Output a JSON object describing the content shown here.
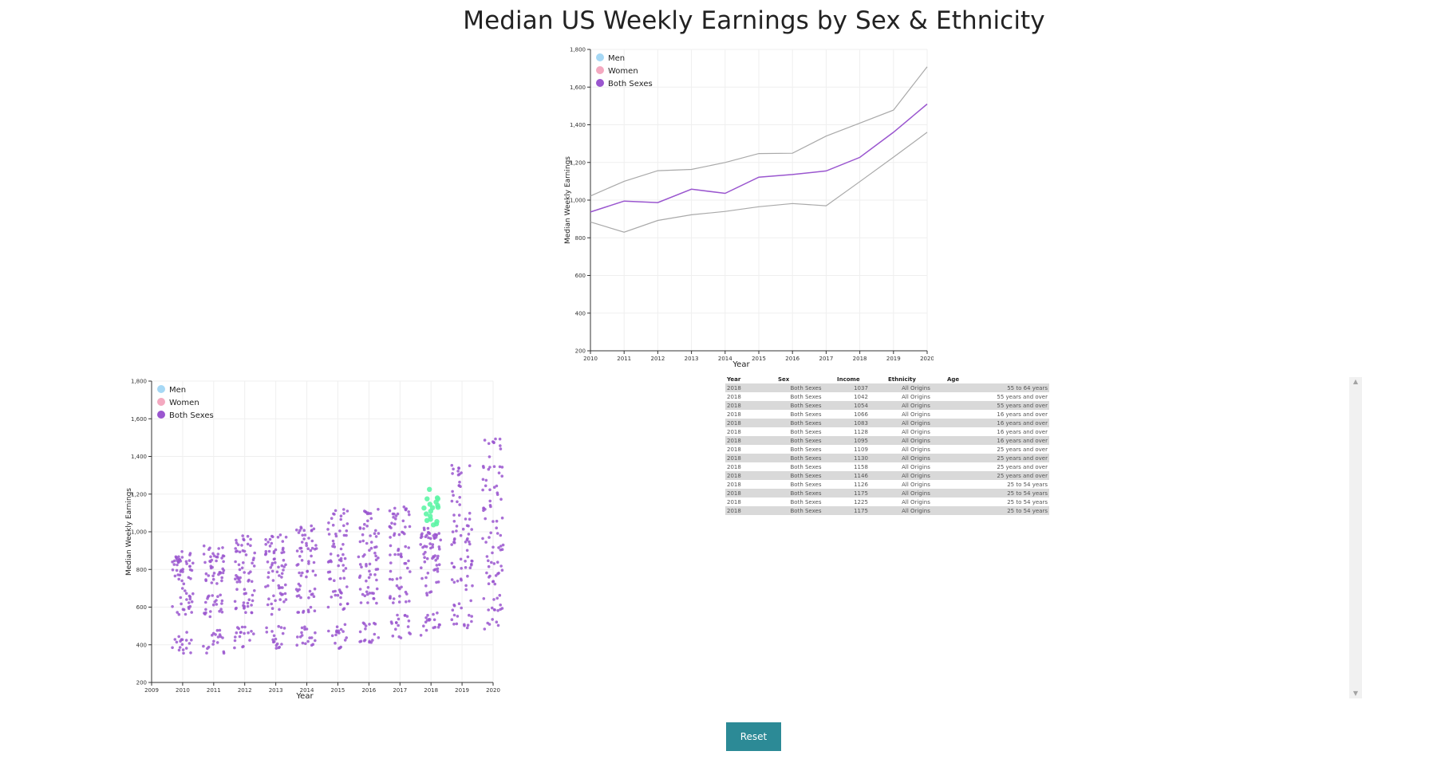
{
  "page": {
    "title": "Median US Weekly Earnings by Sex & Ethnicity",
    "reset_label": "Reset"
  },
  "colors": {
    "men": "#a6d8f5",
    "women": "#f4a9c0",
    "both_sexes": "#9a56cf",
    "highlight": "#5ef5a6",
    "grey_line": "#a9a9a9",
    "table_stripe": "#d9d9d9",
    "button": "#2c8a96"
  },
  "table": {
    "headers": [
      "Year",
      "Sex",
      "Income",
      "Ethnicity",
      "Age"
    ],
    "rows": [
      [
        "2018",
        "Both Sexes",
        "1037",
        "All Origins",
        "55 to 64 years"
      ],
      [
        "2018",
        "Both Sexes",
        "1042",
        "All Origins",
        "55 years and over"
      ],
      [
        "2018",
        "Both Sexes",
        "1054",
        "All Origins",
        "55 years and over"
      ],
      [
        "2018",
        "Both Sexes",
        "1066",
        "All Origins",
        "16 years and over"
      ],
      [
        "2018",
        "Both Sexes",
        "1083",
        "All Origins",
        "16 years and over"
      ],
      [
        "2018",
        "Both Sexes",
        "1128",
        "All Origins",
        "16 years and over"
      ],
      [
        "2018",
        "Both Sexes",
        "1095",
        "All Origins",
        "16 years and over"
      ],
      [
        "2018",
        "Both Sexes",
        "1109",
        "All Origins",
        "25 years and over"
      ],
      [
        "2018",
        "Both Sexes",
        "1130",
        "All Origins",
        "25 years and over"
      ],
      [
        "2018",
        "Both Sexes",
        "1158",
        "All Origins",
        "25 years and over"
      ],
      [
        "2018",
        "Both Sexes",
        "1146",
        "All Origins",
        "25 years and over"
      ],
      [
        "2018",
        "Both Sexes",
        "1126",
        "All Origins",
        "25 to 54 years"
      ],
      [
        "2018",
        "Both Sexes",
        "1175",
        "All Origins",
        "25 to 54 years"
      ],
      [
        "2018",
        "Both Sexes",
        "1225",
        "All Origins",
        "25 to 54 years"
      ],
      [
        "2018",
        "Both Sexes",
        "1175",
        "All Origins",
        "25 to 54 years"
      ]
    ]
  },
  "chart_data": [
    {
      "id": "line",
      "type": "line",
      "xlabel": "Year",
      "ylabel": "Median Weekly Earnings",
      "xlim": [
        2010,
        2020
      ],
      "ylim": [
        200,
        1800
      ],
      "x_ticks": [
        "2010",
        "2011",
        "2012",
        "2013",
        "2014",
        "2015",
        "2016",
        "2017",
        "2018",
        "2019",
        "2020"
      ],
      "y_ticks": [
        "200",
        "400",
        "600",
        "800",
        "1,000",
        "1,200",
        "1,400",
        "1,600",
        "1,800"
      ],
      "legend": [
        "Men",
        "Women",
        "Both Sexes"
      ],
      "legend_position": "top-left",
      "grid": true,
      "x": [
        2010,
        2011,
        2012,
        2013,
        2014,
        2015,
        2016,
        2017,
        2018,
        2019,
        2020
      ],
      "series": [
        {
          "color_key": "grey_line",
          "values": [
            1022,
            1100,
            1156,
            1163,
            1200,
            1247,
            1249,
            1340,
            1409,
            1478,
            1708
          ]
        },
        {
          "color_key": "both_sexes",
          "values": [
            937,
            995,
            987,
            1058,
            1036,
            1122,
            1136,
            1155,
            1227,
            1360,
            1510
          ]
        },
        {
          "color_key": "grey_line",
          "values": [
            884,
            830,
            892,
            922,
            940,
            965,
            982,
            970,
            1098,
            1228,
            1360
          ]
        }
      ]
    },
    {
      "id": "scatter",
      "type": "scatter",
      "xlabel": "Year",
      "ylabel": "Median Weekly Earnings",
      "xlim": [
        2009,
        2020
      ],
      "ylim": [
        200,
        1800
      ],
      "x_ticks": [
        "2009",
        "2010",
        "2011",
        "2012",
        "2013",
        "2014",
        "2015",
        "2016",
        "2017",
        "2018",
        "2019",
        "2020"
      ],
      "y_ticks": [
        "200",
        "400",
        "600",
        "800",
        "1,000",
        "1,200",
        "1,400",
        "1,600",
        "1,800"
      ],
      "legend": [
        "Men",
        "Women",
        "Both Sexes"
      ],
      "legend_position": "top-left",
      "grid": true,
      "highlight_year": 2018,
      "highlight_values": [
        1037,
        1042,
        1054,
        1066,
        1083,
        1128,
        1095,
        1109,
        1130,
        1158,
        1146,
        1126,
        1175,
        1225,
        1175,
        1180,
        1060,
        1140
      ],
      "clusters": [
        {
          "year": 2010,
          "bands": [
            [
              720,
              900,
              40
            ],
            [
              560,
              700,
              22
            ],
            [
              340,
              470,
              18
            ]
          ]
        },
        {
          "year": 2011,
          "bands": [
            [
              720,
              930,
              42
            ],
            [
              540,
              690,
              22
            ],
            [
              350,
              480,
              18
            ]
          ]
        },
        {
          "year": 2012,
          "bands": [
            [
              730,
              980,
              42
            ],
            [
              550,
              700,
              22
            ],
            [
              360,
              500,
              18
            ]
          ]
        },
        {
          "year": 2013,
          "bands": [
            [
              740,
              1000,
              44
            ],
            [
              560,
              720,
              22
            ],
            [
              370,
              500,
              18
            ]
          ]
        },
        {
          "year": 2014,
          "bands": [
            [
              760,
              1040,
              44
            ],
            [
              570,
              740,
              22
            ],
            [
              390,
              500,
              18
            ]
          ]
        },
        {
          "year": 2015,
          "bands": [
            [
              780,
              1120,
              44
            ],
            [
              580,
              760,
              22
            ],
            [
              380,
              520,
              18
            ]
          ]
        },
        {
          "year": 2016,
          "bands": [
            [
              790,
              1130,
              44
            ],
            [
              590,
              780,
              22
            ],
            [
              410,
              520,
              18
            ]
          ]
        },
        {
          "year": 2017,
          "bands": [
            [
              820,
              1150,
              44
            ],
            [
              620,
              820,
              22
            ],
            [
              420,
              560,
              18
            ]
          ]
        },
        {
          "year": 2018,
          "bands": [
            [
              850,
              1020,
              40
            ],
            [
              660,
              860,
              22
            ],
            [
              450,
              600,
              18
            ]
          ]
        },
        {
          "year": 2019,
          "bands": [
            [
              880,
              1360,
              46
            ],
            [
              680,
              880,
              22
            ],
            [
              480,
              640,
              18
            ]
          ]
        },
        {
          "year": 2020,
          "bands": [
            [
              900,
              1510,
              50
            ],
            [
              720,
              920,
              22
            ],
            [
              480,
              680,
              18
            ]
          ]
        }
      ]
    }
  ]
}
